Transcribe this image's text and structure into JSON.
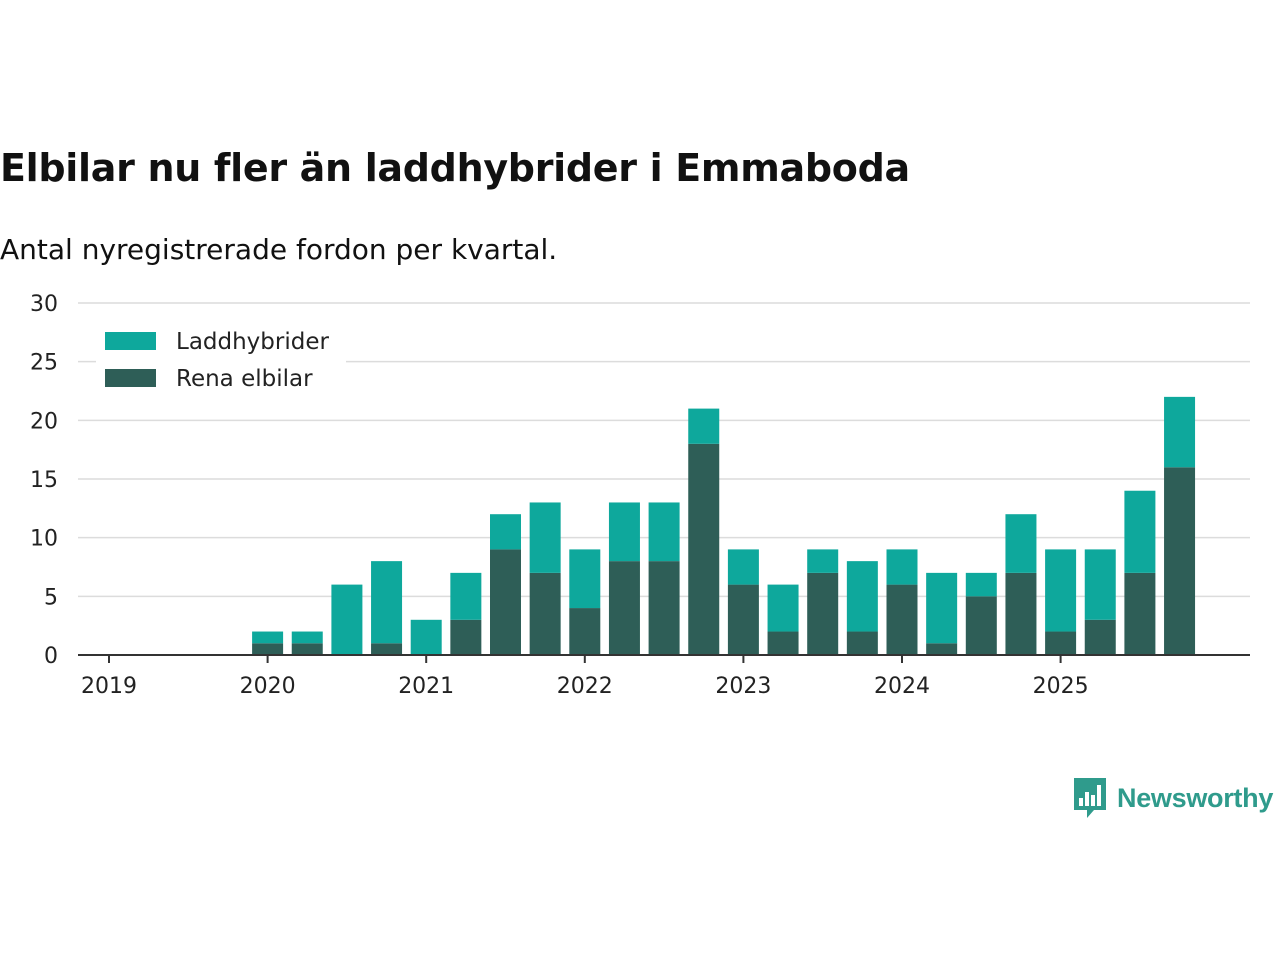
{
  "title": "Elbilar nu fler än laddhybrider i Emmaboda",
  "subtitle": "Antal nyregistrerade fordon per kvartal.",
  "brand": {
    "name": "Newsworthy",
    "icon": "newsworthy-logo-icon",
    "color": "#2f9b8c"
  },
  "chart_data": {
    "type": "bar",
    "stacked": true,
    "title": "Elbilar nu fler än laddhybrider i Emmaboda",
    "subtitle": "Antal nyregistrerade fordon per kvartal.",
    "xlabel": "",
    "ylabel": "",
    "ylim": [
      0,
      30
    ],
    "yticks": [
      0,
      5,
      10,
      15,
      20,
      25,
      30
    ],
    "grid": true,
    "legend_position": "top-left",
    "x_year_ticks": [
      "2019",
      "2020",
      "2021",
      "2022",
      "2023",
      "2024",
      "2025"
    ],
    "categories": [
      "2019 Q1",
      "2019 Q2",
      "2019 Q3",
      "2019 Q4",
      "2020 Q1",
      "2020 Q2",
      "2020 Q3",
      "2020 Q4",
      "2021 Q1",
      "2021 Q2",
      "2021 Q3",
      "2021 Q4",
      "2022 Q1",
      "2022 Q2",
      "2022 Q3",
      "2022 Q4",
      "2023 Q1",
      "2023 Q2",
      "2023 Q3",
      "2023 Q4",
      "2024 Q1",
      "2024 Q2",
      "2024 Q3",
      "2024 Q4",
      "2025 Q1",
      "2025 Q2",
      "2025 Q3",
      "2025 Q4"
    ],
    "series": [
      {
        "name": "Rena elbilar",
        "color": "#2e5e57",
        "values": [
          0,
          0,
          0,
          0,
          1,
          1,
          0,
          1,
          0,
          3,
          9,
          7,
          4,
          8,
          8,
          18,
          6,
          2,
          7,
          2,
          6,
          1,
          5,
          7,
          2,
          3,
          7,
          16
        ]
      },
      {
        "name": "Laddhybrider",
        "color": "#0ea89c",
        "values": [
          0,
          0,
          0,
          0,
          1,
          1,
          6,
          7,
          3,
          4,
          3,
          6,
          5,
          5,
          5,
          3,
          3,
          4,
          2,
          6,
          3,
          6,
          2,
          5,
          7,
          6,
          7,
          6
        ]
      }
    ],
    "legend": [
      "Laddhybrider",
      "Rena elbilar"
    ]
  }
}
